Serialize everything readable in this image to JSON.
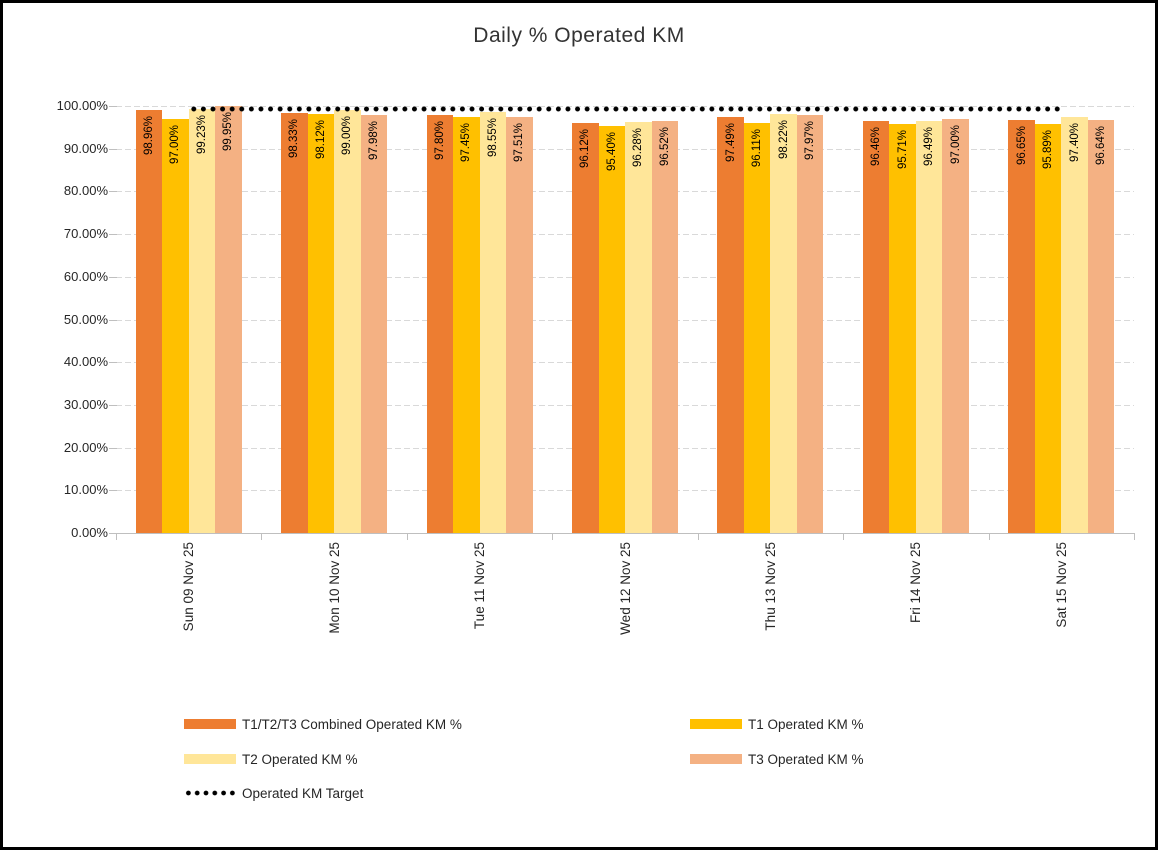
{
  "chart_data": {
    "type": "bar",
    "title": "Daily % Operated KM",
    "categories": [
      "Sun 09 Nov 25",
      "Mon 10 Nov 25",
      "Tue 11 Nov 25",
      "Wed 12 Nov 25",
      "Thu 13 Nov 25",
      "Fri 14 Nov 25",
      "Sat 15 Nov 25"
    ],
    "series": [
      {
        "name": "T1/T2/T3 Combined Operated KM %",
        "color": "#ED7D31",
        "values": [
          98.96,
          98.33,
          97.8,
          96.12,
          97.49,
          96.46,
          96.65
        ]
      },
      {
        "name": "T1 Operated KM %",
        "color": "#FFC000",
        "values": [
          97.0,
          98.12,
          97.45,
          95.4,
          96.11,
          95.71,
          95.89
        ]
      },
      {
        "name": "T2 Operated KM %",
        "color": "#FFE699",
        "values": [
          99.23,
          99.0,
          98.55,
          96.28,
          98.22,
          96.49,
          97.4
        ]
      },
      {
        "name": "T3 Operated KM %",
        "color": "#F4B183",
        "values": [
          99.95,
          97.98,
          97.51,
          96.52,
          97.97,
          97.0,
          96.64
        ]
      }
    ],
    "target_line": {
      "name": "Operated KM Target",
      "value": 100,
      "color": "#000000",
      "style": "dotted"
    },
    "y_axis": {
      "min": 0,
      "max": 100,
      "step": 10,
      "tick_labels": [
        "0.00%",
        "10.00%",
        "20.00%",
        "30.00%",
        "40.00%",
        "50.00%",
        "60.00%",
        "70.00%",
        "80.00%",
        "90.00%",
        "100.00%"
      ]
    },
    "data_label_decimals": 2,
    "data_label_suffix": "%",
    "legend_position": "bottom",
    "grid": true,
    "colors": {
      "gridline": "#D9D9D9",
      "axis": "#BFBFBF",
      "text": "#262626",
      "background": "#FFFFFF",
      "border": "#000000"
    }
  }
}
